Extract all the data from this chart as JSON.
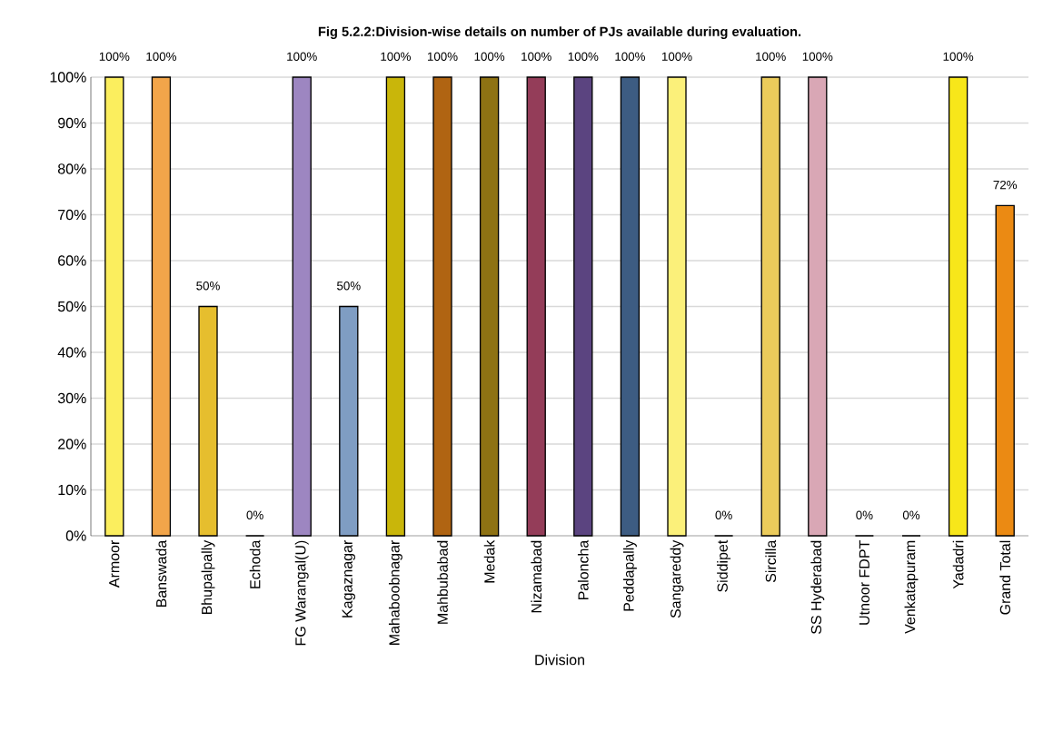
{
  "chart_data": {
    "type": "bar",
    "title": "Fig 5.2.2:Division-wise details on number of PJs available during evaluation.",
    "xlabel": "Division",
    "categories": [
      "Armoor",
      "Banswada",
      "Bhupalpally",
      "Echoda",
      "FG Warangal(U)",
      "Kagaznagar",
      "Mahaboobnagar",
      "Mahbubabad",
      "Medak",
      "Nizamabad",
      "Paloncha",
      "Peddapally",
      "Sangareddy",
      "Siddipet",
      "Sircilla",
      "SS Hyderabad",
      "Utnoor FDPT",
      "Venkatapuram",
      "Yadadri",
      "Grand Total"
    ],
    "values": [
      100,
      100,
      50,
      0,
      100,
      50,
      100,
      100,
      100,
      100,
      100,
      100,
      100,
      0,
      100,
      100,
      0,
      0,
      100,
      72
    ],
    "value_labels": [
      "100%",
      "100%",
      "50%",
      "0%",
      "100%",
      "50%",
      "100%",
      "100%",
      "100%",
      "100%",
      "100%",
      "100%",
      "100%",
      "0%",
      "100%",
      "100%",
      "0%",
      "0%",
      "100%",
      "72%"
    ],
    "colors": [
      "#fbee5e",
      "#f2a54a",
      "#e6be2e",
      "#d08a3a",
      "#9d86c1",
      "#7f9dc3",
      "#c9b60a",
      "#b06412",
      "#8e7213",
      "#943d59",
      "#5b4480",
      "#3d5c82",
      "#fbf07a",
      "#cccccc",
      "#ebcb5b",
      "#d9a7b5",
      "#aaaaaa",
      "#bbbbbb",
      "#f7e61a",
      "#eb8a13"
    ],
    "ylim": [
      0,
      100
    ],
    "yticks": [
      {
        "value": 0,
        "label": "0%"
      },
      {
        "value": 10,
        "label": "10%"
      },
      {
        "value": 20,
        "label": "20%"
      },
      {
        "value": 30,
        "label": "30%"
      },
      {
        "value": 40,
        "label": "40%"
      },
      {
        "value": 50,
        "label": "50%"
      },
      {
        "value": 60,
        "label": "60%"
      },
      {
        "value": 70,
        "label": "70%"
      },
      {
        "value": 80,
        "label": "80%"
      },
      {
        "value": 90,
        "label": "90%"
      },
      {
        "value": 100,
        "label": "100%"
      }
    ],
    "grid": "y"
  }
}
